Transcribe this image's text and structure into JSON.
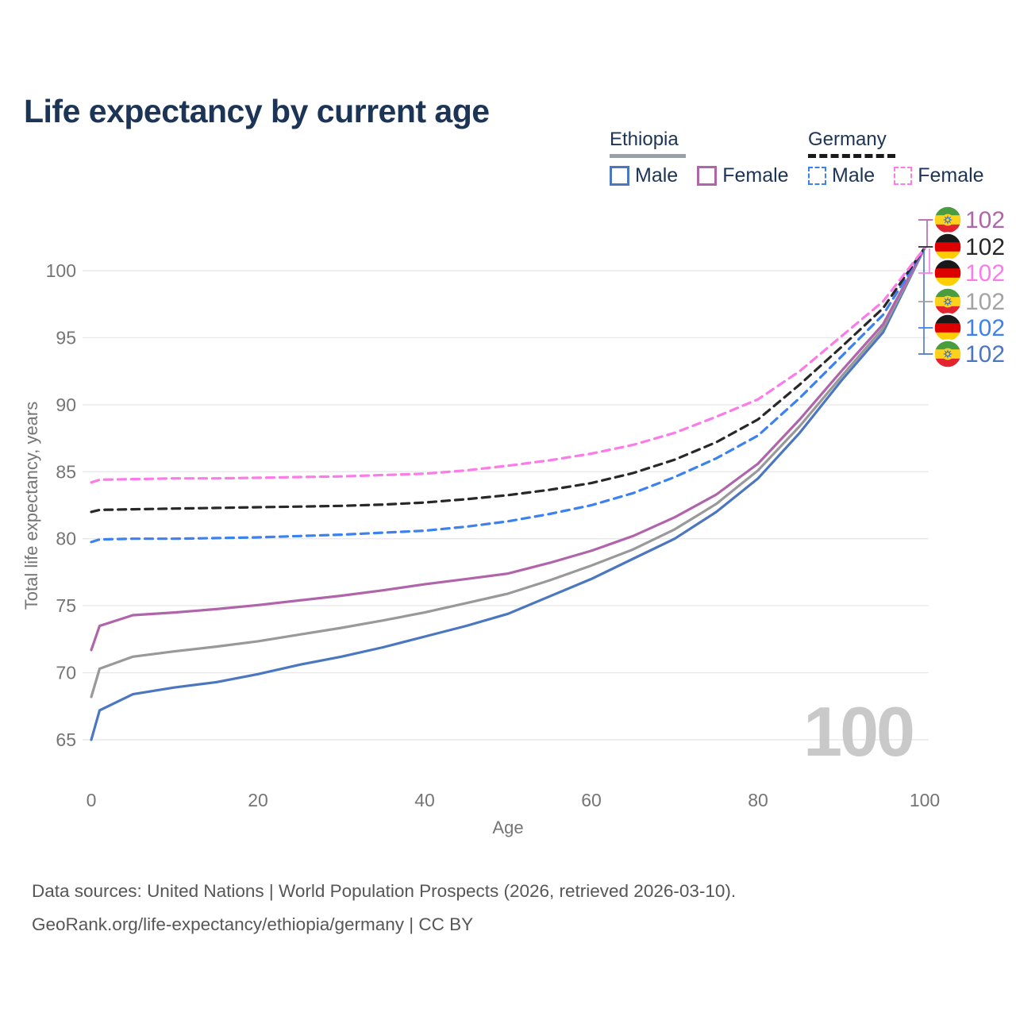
{
  "title": "Life expectancy by current age",
  "colors": {
    "title_text": "#1c3456",
    "axis_text": "#757575",
    "gridline": "#e9e9eb",
    "watermark": "#c9c9c9",
    "footer_text": "#565656",
    "ethiopia_male": "#4b77c0",
    "ethiopia_female": "#b065ab",
    "ethiopia_all": "#999999",
    "germany_male": "#3b82f0",
    "germany_female": "#fb7ce8",
    "germany_all": "#282828"
  },
  "legend": {
    "groups": [
      {
        "country": "Ethiopia",
        "line_style": "solid",
        "line_color": "#9aa0a6",
        "items": [
          {
            "label": "Male",
            "color": "#4b77c0",
            "box_style": "solid"
          },
          {
            "label": "Female",
            "color": "#b065ab",
            "box_style": "solid"
          }
        ]
      },
      {
        "country": "Germany",
        "line_style": "dashed",
        "line_color": "#1a1a1a",
        "items": [
          {
            "label": "Male",
            "color": "#3b82f0",
            "box_style": "dashed"
          },
          {
            "label": "Female",
            "color": "#fb7ce8",
            "box_style": "dashed"
          }
        ]
      }
    ]
  },
  "flags": {
    "ethiopia": {
      "stripes": [
        "#4a9c41",
        "#fcd21c",
        "#e3242f"
      ],
      "emblem_disc": "#ffd21e",
      "emblem_star": "#2f6fd0"
    },
    "germany": {
      "stripes": [
        "#191919",
        "#dd0000",
        "#ffce00"
      ]
    }
  },
  "chart_data": {
    "type": "line",
    "title": "Life expectancy by current age",
    "xlabel": "Age",
    "ylabel": "Total life expectancy, years",
    "xlim": [
      0,
      100
    ],
    "ylim": [
      63,
      103
    ],
    "xticks": [
      0,
      20,
      40,
      60,
      80,
      100
    ],
    "yticks": [
      65,
      70,
      75,
      80,
      85,
      90,
      95,
      100
    ],
    "grid": "horizontal-only",
    "legend_position": "top-right",
    "watermark": "100",
    "x": [
      0,
      1,
      5,
      10,
      15,
      20,
      25,
      30,
      35,
      40,
      45,
      50,
      55,
      60,
      65,
      70,
      75,
      80,
      85,
      90,
      95,
      100
    ],
    "series": [
      {
        "name": "Ethiopia Male",
        "country": "Ethiopia",
        "sex": "Male",
        "color": "#4b77c0",
        "dashed": false,
        "values": [
          65.0,
          67.2,
          68.4,
          68.9,
          69.3,
          69.9,
          70.6,
          71.2,
          71.9,
          72.7,
          73.5,
          74.4,
          75.7,
          77.0,
          78.5,
          80.0,
          82.0,
          84.5,
          87.9,
          91.8,
          95.4,
          101.7
        ]
      },
      {
        "name": "Ethiopia All",
        "country": "Ethiopia",
        "sex": "All",
        "color": "#999999",
        "dashed": false,
        "values": [
          68.2,
          70.3,
          71.2,
          71.6,
          71.95,
          72.35,
          72.85,
          73.35,
          73.9,
          74.5,
          75.2,
          75.9,
          76.9,
          78.0,
          79.2,
          80.7,
          82.6,
          85.1,
          88.4,
          92.1,
          95.7,
          101.7
        ]
      },
      {
        "name": "Ethiopia Female",
        "country": "Ethiopia",
        "sex": "Female",
        "color": "#b065ab",
        "dashed": false,
        "values": [
          71.7,
          73.5,
          74.3,
          74.5,
          74.75,
          75.05,
          75.4,
          75.75,
          76.15,
          76.6,
          77.0,
          77.4,
          78.2,
          79.1,
          80.2,
          81.6,
          83.3,
          85.6,
          88.9,
          92.5,
          96.0,
          101.7
        ]
      },
      {
        "name": "Germany Male",
        "country": "Germany",
        "sex": "Male",
        "color": "#3b82f0",
        "dashed": true,
        "values": [
          79.75,
          79.95,
          80.0,
          80.0,
          80.05,
          80.1,
          80.2,
          80.3,
          80.45,
          80.6,
          80.9,
          81.3,
          81.85,
          82.5,
          83.4,
          84.6,
          86.0,
          87.7,
          90.5,
          93.6,
          96.7,
          101.7
        ]
      },
      {
        "name": "Germany All",
        "country": "Germany",
        "sex": "All",
        "color": "#282828",
        "dashed": true,
        "values": [
          82.0,
          82.15,
          82.2,
          82.25,
          82.3,
          82.35,
          82.4,
          82.45,
          82.55,
          82.7,
          82.95,
          83.25,
          83.65,
          84.15,
          84.9,
          85.9,
          87.2,
          88.9,
          91.5,
          94.3,
          97.2,
          101.7
        ]
      },
      {
        "name": "Germany Female",
        "country": "Germany",
        "sex": "Female",
        "color": "#fb7ce8",
        "dashed": true,
        "values": [
          84.2,
          84.4,
          84.45,
          84.5,
          84.5,
          84.55,
          84.6,
          84.65,
          84.75,
          84.85,
          85.1,
          85.45,
          85.85,
          86.35,
          87.0,
          87.9,
          89.1,
          90.4,
          92.5,
          95.1,
          97.7,
          101.7
        ]
      }
    ],
    "end_labels": [
      {
        "flag": "ethiopia",
        "series": "Ethiopia Female",
        "value": "102",
        "color": "#b065ab"
      },
      {
        "flag": "germany",
        "series": "Germany All",
        "value": "102",
        "color": "#282828"
      },
      {
        "flag": "germany",
        "series": "Germany Female",
        "value": "102",
        "color": "#fb7ce8"
      },
      {
        "flag": "ethiopia",
        "series": "Ethiopia All",
        "value": "102",
        "color": "#a3a3a3"
      },
      {
        "flag": "germany",
        "series": "Germany Male",
        "value": "102",
        "color": "#3b82f0"
      },
      {
        "flag": "ethiopia",
        "series": "Ethiopia Male",
        "value": "102",
        "color": "#4b77c0"
      }
    ]
  },
  "footer": {
    "line1": "Data sources: United Nations | World Population Prospects (2026, retrieved 2026-03-10).",
    "line2": "GeoRank.org/life-expectancy/ethiopia/germany | CC BY"
  }
}
